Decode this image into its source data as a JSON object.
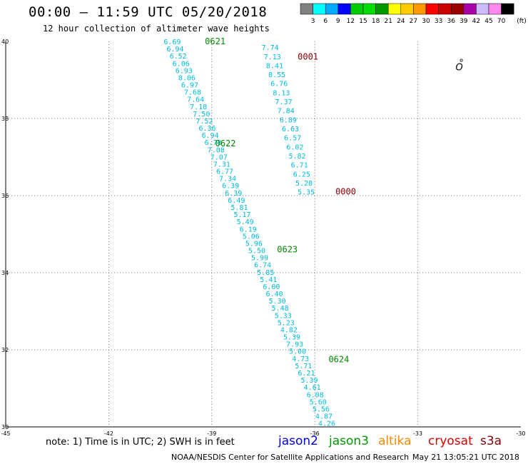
{
  "header": {
    "title": "00:00 – 11:59 UTC 05/20/2018",
    "subtitle": "12 hour collection of altimeter wave heights"
  },
  "legend": {
    "labels": [
      "3",
      "6",
      "9",
      "12",
      "15",
      "18",
      "21",
      "24",
      "27",
      "30",
      "33",
      "36",
      "39",
      "42",
      "45",
      "70"
    ],
    "unit": "(ft)",
    "colors": [
      "#808080",
      "#00ffff",
      "#00aaff",
      "#0000ff",
      "#00cc00",
      "#00dd00",
      "#009900",
      "#ffff00",
      "#ffcc00",
      "#ff9900",
      "#ff0000",
      "#cc0000",
      "#990000",
      "#aa00aa",
      "#ccbbff",
      "#ff88ee",
      "#000000"
    ]
  },
  "footer": {
    "note": "note: 1) Time is in UTC; 2) SWH is in feet",
    "missions": [
      {
        "name": "jason2",
        "color": "#0000ee"
      },
      {
        "name": "jason3",
        "color": "#009900"
      },
      {
        "name": "altika",
        "color": "#ff8800"
      },
      {
        "name": "cryosat",
        "color": "#dd0000"
      },
      {
        "name": "s3a",
        "color": "#880000"
      }
    ],
    "credit": "NOAA/NESDIS Center for Satellite Applications and Research",
    "timestamp": "May 21 13:05:21 UTC 2018"
  },
  "chart_data": {
    "type": "scatter",
    "xlim": [
      -45,
      -30
    ],
    "ylim": [
      30,
      40
    ],
    "x_ticks": [
      "-45",
      "-42",
      "-39",
      "-36",
      "-33",
      "-30"
    ],
    "y_ticks": [
      "40",
      "38",
      "36",
      "34",
      "32",
      "30"
    ],
    "grid": true,
    "colors": {
      "swh_label": "#00bbdd",
      "jason3_time": "#008800",
      "s3a_time": "#880000"
    },
    "time_labels": [
      {
        "text": "0621",
        "lon": -39.2,
        "lat": 40.0,
        "mission": "jason3"
      },
      {
        "text": "0622",
        "lon": -38.9,
        "lat": 37.35,
        "mission": "jason3"
      },
      {
        "text": "0623",
        "lon": -37.1,
        "lat": 34.6,
        "mission": "jason3"
      },
      {
        "text": "0624",
        "lon": -35.6,
        "lat": 31.75,
        "mission": "jason3"
      },
      {
        "text": "0001",
        "lon": -36.5,
        "lat": 39.6,
        "mission": "s3a"
      },
      {
        "text": "0000",
        "lon": -35.4,
        "lat": 36.1,
        "mission": "s3a"
      }
    ],
    "tracks": [
      {
        "mission": "jason3",
        "start": {
          "lon": -40.15,
          "lat": 40.0
        },
        "end": {
          "lon": -35.65,
          "lat": 30.1
        },
        "values": [
          "6.69",
          "6.94",
          "6.52",
          "6.06",
          "6.93",
          "8.06",
          "6.97",
          "7.68",
          "7.64",
          "7.18",
          "7.50",
          "7.52",
          "6.36",
          "6.94",
          "6.78",
          "7.08",
          "7.07",
          "7.31",
          "6.77",
          "7.34",
          "6.39",
          "6.39",
          "6.49",
          "5.81",
          "5.17",
          "5.49",
          "6.19",
          "5.06",
          "5.96",
          "5.50",
          "5.99",
          "6.74",
          "5.85",
          "5.41",
          "6.00",
          "6.40",
          "5.30",
          "5.48",
          "5.33",
          "5.23",
          "4.82",
          "5.39",
          "7.93",
          "5.00",
          "4.73",
          "5.71",
          "6.21",
          "5.39",
          "4.61",
          "6.08",
          "5.60",
          "5.56",
          "4.87",
          "4.26"
        ]
      },
      {
        "mission": "s3a",
        "start": {
          "lon": -37.3,
          "lat": 39.85
        },
        "end": {
          "lon": -36.25,
          "lat": 36.1
        },
        "values": [
          "7.74",
          "7.13",
          "8.41",
          "8.55",
          "6.76",
          "8.13",
          "7.37",
          "7.84",
          "6.89",
          "6.63",
          "6.57",
          "6.02",
          "5.82",
          "6.71",
          "6.25",
          "5.28",
          "5.35"
        ]
      }
    ],
    "annotation": {
      "text": "O",
      "lon": -31.9,
      "lat": 39.25
    }
  }
}
